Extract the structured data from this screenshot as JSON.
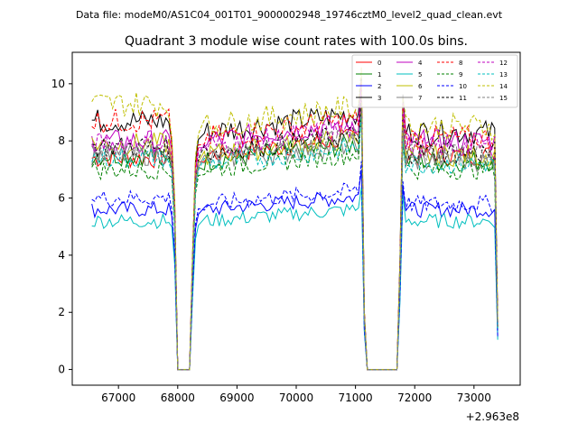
{
  "chart_data": {
    "type": "line",
    "suptitle": "Data file: modeM0/AS1C04_001T01_9000002948_19746cztM0_level2_quad_clean.evt",
    "title": "Quadrant 3 module wise count rates with 100.0s bins.",
    "xlabel": "",
    "ylabel": "",
    "x_offset_label": "+2.963e8",
    "xlim": [
      66220,
      73780
    ],
    "ylim": [
      -0.55,
      11.1
    ],
    "x_ticks": [
      67000,
      68000,
      69000,
      70000,
      71000,
      72000,
      73000
    ],
    "x_tick_labels": [
      "67000",
      "68000",
      "69000",
      "70000",
      "71000",
      "72000",
      "73000"
    ],
    "y_ticks": [
      0,
      2,
      4,
      6,
      8,
      10
    ],
    "y_tick_labels": [
      "0",
      "2",
      "4",
      "6",
      "8",
      "10"
    ],
    "legend_position": "top-right",
    "legend_columns": 4,
    "series": [
      {
        "name": "0",
        "color": "#ff0000",
        "dash": "solid",
        "level_high": 7.4,
        "level_low": 7.5
      },
      {
        "name": "1",
        "color": "#008000",
        "dash": "solid",
        "level_high": 7.5,
        "level_low": 7.3
      },
      {
        "name": "2",
        "color": "#0000ff",
        "dash": "solid",
        "level_high": 5.6,
        "level_low": 5.6
      },
      {
        "name": "3",
        "color": "#000000",
        "dash": "solid",
        "level_high": 8.7,
        "level_low": 8.3
      },
      {
        "name": "4",
        "color": "#bf00bf",
        "dash": "solid",
        "level_high": 8.0,
        "level_low": 8.0
      },
      {
        "name": "5",
        "color": "#00bfbf",
        "dash": "solid",
        "level_high": 5.2,
        "level_low": 5.2
      },
      {
        "name": "6",
        "color": "#bfbf00",
        "dash": "solid",
        "level_high": 7.9,
        "level_low": 7.5
      },
      {
        "name": "7",
        "color": "#808080",
        "dash": "solid",
        "level_high": 7.5,
        "level_low": 7.3
      },
      {
        "name": "8",
        "color": "#ff0000",
        "dash": "dashed",
        "level_high": 8.7,
        "level_low": 8.1
      },
      {
        "name": "9",
        "color": "#008000",
        "dash": "dashed",
        "level_high": 7.0,
        "level_low": 7.0
      },
      {
        "name": "10",
        "color": "#0000ff",
        "dash": "dashed",
        "level_high": 6.0,
        "level_low": 5.8
      },
      {
        "name": "11",
        "color": "#000000",
        "dash": "dashed",
        "level_high": 7.8,
        "level_low": 7.6
      },
      {
        "name": "12",
        "color": "#bf00bf",
        "dash": "dashed",
        "level_high": 7.9,
        "level_low": 7.8
      },
      {
        "name": "13",
        "color": "#00bfbf",
        "dash": "dashed",
        "level_high": 7.4,
        "level_low": 7.2
      },
      {
        "name": "14",
        "color": "#bfbf00",
        "dash": "dashed",
        "level_high": 9.3,
        "level_low": 8.5
      },
      {
        "name": "15",
        "color": "#808080",
        "dash": "dashed",
        "level_high": 7.6,
        "level_low": 7.5
      }
    ],
    "segments": [
      {
        "x_start": 66550,
        "x_end": 67850,
        "step": 50,
        "level": "level_high",
        "trend": 0
      },
      {
        "x_start": 68450,
        "x_end": 71050,
        "step": 50,
        "level": "level_low",
        "trend": 0.6
      },
      {
        "x_start": 71850,
        "x_end": 73350,
        "step": 50,
        "level": "level_low",
        "trend": 0
      }
    ],
    "gaps": [
      {
        "x": [
          67900,
          67950,
          68000,
          68050,
          68100,
          68150,
          68200,
          68250,
          68300,
          68350
        ],
        "factor": [
          0.96,
          0.7,
          0.0,
          0.0,
          0.0,
          0.0,
          0.0,
          0.48,
          0.88,
          0.97
        ]
      },
      {
        "x": [
          71100,
          71150,
          71200,
          71300,
          71400,
          71500,
          71600,
          71700,
          71750,
          71800
        ],
        "factor": [
          1.25,
          0.25,
          0.0,
          0.0,
          0.0,
          0.0,
          0.0,
          0.0,
          0.45,
          1.15
        ]
      }
    ],
    "end_drop": {
      "x": 73400,
      "factor": 0.2
    }
  }
}
